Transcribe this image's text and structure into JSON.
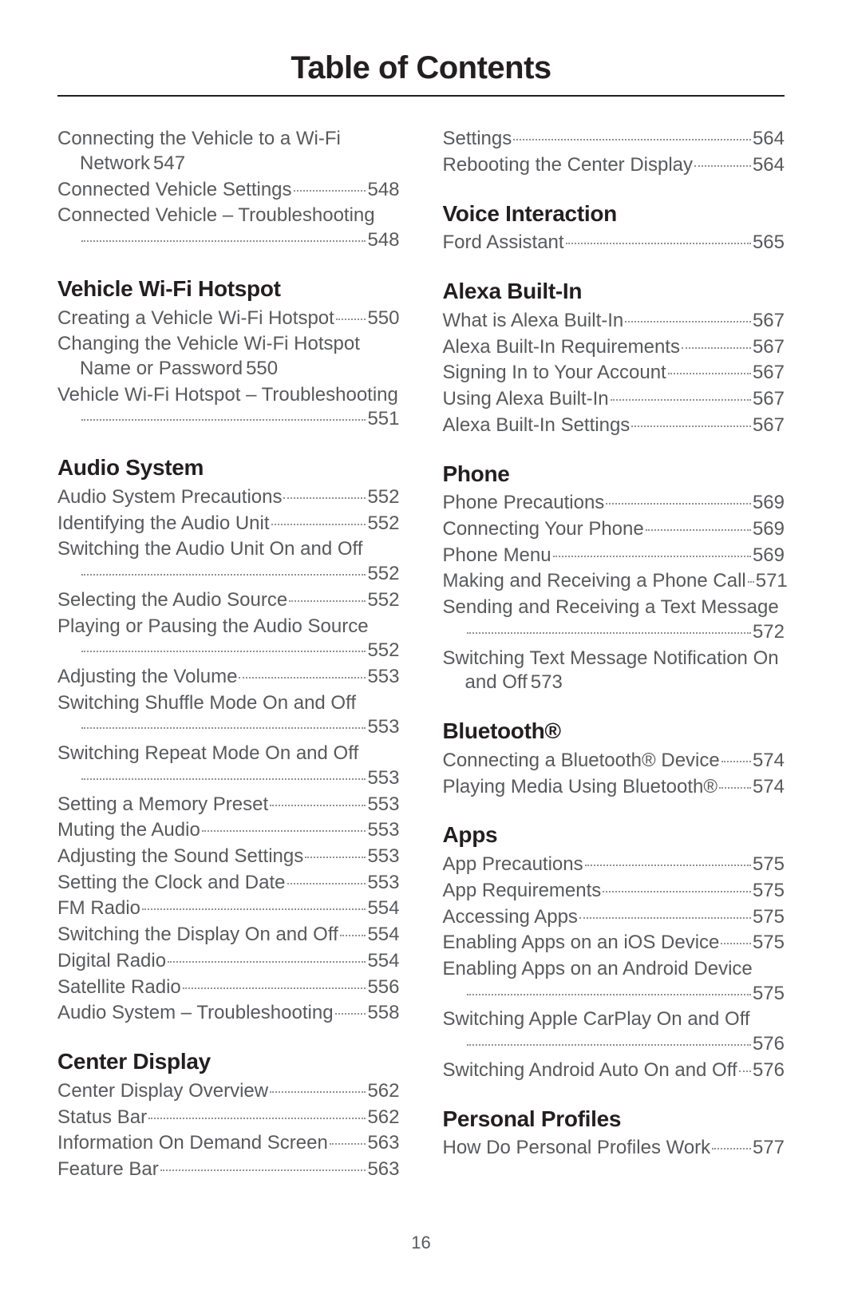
{
  "page_title": "Table of Contents",
  "page_number": "16",
  "left": [
    {
      "type": "entry",
      "label_lines": [
        "Connecting the Vehicle to a Wi-Fi"
      ],
      "cont": "Network",
      "page": "547"
    },
    {
      "type": "entry",
      "label_lines": [
        "Connected Vehicle Settings"
      ],
      "page": "548"
    },
    {
      "type": "entry",
      "label_lines": [
        "Connected Vehicle – Troubleshooting"
      ],
      "dots_on_new_line": true,
      "page": "548"
    },
    {
      "type": "section",
      "label": "Vehicle Wi-Fi Hotspot"
    },
    {
      "type": "entry",
      "label_lines": [
        "Creating a Vehicle Wi-Fi Hotspot"
      ],
      "page": "550"
    },
    {
      "type": "entry",
      "label_lines": [
        "Changing the Vehicle Wi-Fi Hotspot"
      ],
      "cont": "Name or Password",
      "page": "550"
    },
    {
      "type": "entry",
      "label_lines": [
        "Vehicle Wi-Fi Hotspot – Troubleshooting"
      ],
      "dots_on_new_line": true,
      "page": "551"
    },
    {
      "type": "section",
      "label": "Audio System"
    },
    {
      "type": "entry",
      "label_lines": [
        "Audio System Precautions"
      ],
      "page": "552"
    },
    {
      "type": "entry",
      "label_lines": [
        "Identifying the Audio Unit"
      ],
      "page": "552"
    },
    {
      "type": "entry",
      "label_lines": [
        "Switching the Audio Unit On and Off"
      ],
      "dots_on_new_line": true,
      "page": "552"
    },
    {
      "type": "entry",
      "label_lines": [
        "Selecting the Audio Source"
      ],
      "page": "552"
    },
    {
      "type": "entry",
      "label_lines": [
        "Playing or Pausing the Audio Source"
      ],
      "dots_on_new_line": true,
      "page": "552"
    },
    {
      "type": "entry",
      "label_lines": [
        "Adjusting the Volume"
      ],
      "page": "553"
    },
    {
      "type": "entry",
      "label_lines": [
        "Switching Shuffle Mode On and Off"
      ],
      "dots_on_new_line": true,
      "page": "553"
    },
    {
      "type": "entry",
      "label_lines": [
        "Switching Repeat Mode On and Off"
      ],
      "dots_on_new_line": true,
      "page": "553"
    },
    {
      "type": "entry",
      "label_lines": [
        "Setting a Memory Preset"
      ],
      "page": "553"
    },
    {
      "type": "entry",
      "label_lines": [
        "Muting the Audio"
      ],
      "page": "553"
    },
    {
      "type": "entry",
      "label_lines": [
        "Adjusting the Sound Settings"
      ],
      "page": "553"
    },
    {
      "type": "entry",
      "label_lines": [
        "Setting the Clock and Date"
      ],
      "page": "553"
    },
    {
      "type": "entry",
      "label_lines": [
        "FM Radio"
      ],
      "page": "554"
    },
    {
      "type": "entry",
      "label_lines": [
        "Switching the Display On and Off"
      ],
      "page": "554"
    },
    {
      "type": "entry",
      "label_lines": [
        "Digital Radio"
      ],
      "page": "554"
    },
    {
      "type": "entry",
      "label_lines": [
        "Satellite Radio"
      ],
      "page": "556"
    },
    {
      "type": "entry",
      "label_lines": [
        "Audio System – Troubleshooting"
      ],
      "page": "558"
    },
    {
      "type": "section",
      "label": "Center Display"
    },
    {
      "type": "entry",
      "label_lines": [
        "Center Display Overview"
      ],
      "page": "562"
    },
    {
      "type": "entry",
      "label_lines": [
        "Status Bar"
      ],
      "page": "562"
    },
    {
      "type": "entry",
      "label_lines": [
        "Information On Demand Screen"
      ],
      "page": "563"
    },
    {
      "type": "entry",
      "label_lines": [
        "Feature Bar"
      ],
      "page": "563"
    }
  ],
  "right": [
    {
      "type": "entry",
      "label_lines": [
        "Settings"
      ],
      "page": "564"
    },
    {
      "type": "entry",
      "label_lines": [
        "Rebooting the Center Display"
      ],
      "page": "564"
    },
    {
      "type": "section",
      "label": "Voice Interaction"
    },
    {
      "type": "entry",
      "label_lines": [
        "Ford Assistant"
      ],
      "page": "565"
    },
    {
      "type": "section",
      "label": "Alexa Built-In"
    },
    {
      "type": "entry",
      "label_lines": [
        "What is Alexa Built-In"
      ],
      "page": "567"
    },
    {
      "type": "entry",
      "label_lines": [
        "Alexa Built-In Requirements"
      ],
      "page": "567"
    },
    {
      "type": "entry",
      "label_lines": [
        "Signing In to Your Account"
      ],
      "page": "567"
    },
    {
      "type": "entry",
      "label_lines": [
        "Using Alexa Built-In"
      ],
      "page": "567"
    },
    {
      "type": "entry",
      "label_lines": [
        "Alexa Built-In Settings"
      ],
      "page": "567"
    },
    {
      "type": "section",
      "label": "Phone"
    },
    {
      "type": "entry",
      "label_lines": [
        "Phone Precautions"
      ],
      "page": "569"
    },
    {
      "type": "entry",
      "label_lines": [
        "Connecting Your Phone"
      ],
      "page": "569"
    },
    {
      "type": "entry",
      "label_lines": [
        "Phone Menu"
      ],
      "page": "569"
    },
    {
      "type": "entry",
      "label_lines": [
        "Making and Receiving a Phone Call"
      ],
      "page": "571"
    },
    {
      "type": "entry",
      "label_lines": [
        "Sending and Receiving a Text Message"
      ],
      "dots_on_new_line": true,
      "page": "572"
    },
    {
      "type": "entry",
      "label_lines": [
        "Switching Text Message Notification On"
      ],
      "cont": "and Off",
      "page": "573"
    },
    {
      "type": "section",
      "label": "Bluetooth®"
    },
    {
      "type": "entry",
      "label_lines": [
        "Connecting a Bluetooth® Device"
      ],
      "page": "574"
    },
    {
      "type": "entry",
      "label_lines": [
        "Playing Media Using Bluetooth®"
      ],
      "page": "574"
    },
    {
      "type": "section",
      "label": "Apps"
    },
    {
      "type": "entry",
      "label_lines": [
        "App Precautions"
      ],
      "page": "575"
    },
    {
      "type": "entry",
      "label_lines": [
        "App Requirements"
      ],
      "page": "575"
    },
    {
      "type": "entry",
      "label_lines": [
        "Accessing Apps"
      ],
      "page": "575"
    },
    {
      "type": "entry",
      "label_lines": [
        "Enabling Apps on an iOS Device"
      ],
      "page": "575"
    },
    {
      "type": "entry",
      "label_lines": [
        "Enabling Apps on an Android Device"
      ],
      "dots_on_new_line": true,
      "page": "575"
    },
    {
      "type": "entry",
      "label_lines": [
        "Switching Apple CarPlay On and Off"
      ],
      "dots_on_new_line": true,
      "page": "576"
    },
    {
      "type": "entry",
      "label_lines": [
        "Switching Android Auto On and Off"
      ],
      "page": "576"
    },
    {
      "type": "section",
      "label": "Personal Profiles"
    },
    {
      "type": "entry",
      "label_lines": [
        "How Do Personal Profiles Work"
      ],
      "page": "577"
    }
  ]
}
